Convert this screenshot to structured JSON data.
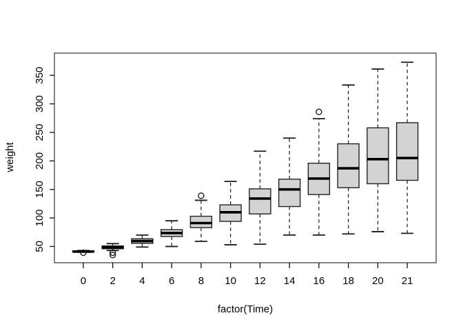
{
  "figure": {
    "background": "#ffffff",
    "frame_color": "#333333",
    "tick_color": "#111111",
    "box_fill": "#d3d3d3",
    "box_stroke": "#222222",
    "median_color": "#000000",
    "whisker_color": "#1a1a1a",
    "outlier_stroke": "#111111"
  },
  "chart_data": {
    "type": "boxplot",
    "title": "",
    "xlabel": "factor(Time)",
    "ylabel": "weight",
    "categories": [
      "0",
      "2",
      "4",
      "6",
      "8",
      "10",
      "12",
      "14",
      "16",
      "18",
      "20",
      "21"
    ],
    "y_ticks": [
      50,
      100,
      150,
      200,
      250,
      300,
      350
    ],
    "ylim": [
      21.5,
      389
    ],
    "grid": false,
    "legend": null,
    "boxes": [
      {
        "time": "0",
        "lower_whisker": 40,
        "q1": 41,
        "median": 41,
        "q3": 42.5,
        "upper_whisker": 43,
        "outliers": [
          39
        ]
      },
      {
        "time": "2",
        "lower_whisker": 43,
        "q1": 46,
        "median": 48.5,
        "q3": 51,
        "upper_whisker": 55,
        "outliers": [
          39,
          35
        ]
      },
      {
        "time": "4",
        "lower_whisker": 49,
        "q1": 55.5,
        "median": 59.5,
        "q3": 63.5,
        "upper_whisker": 70,
        "outliers": []
      },
      {
        "time": "6",
        "lower_whisker": 50,
        "q1": 67.5,
        "median": 73.5,
        "q3": 79.5,
        "upper_whisker": 95,
        "outliers": []
      },
      {
        "time": "8",
        "lower_whisker": 59,
        "q1": 83,
        "median": 91,
        "q3": 103,
        "upper_whisker": 131,
        "outliers": [
          139
        ]
      },
      {
        "time": "10",
        "lower_whisker": 53,
        "q1": 94,
        "median": 110,
        "q3": 123,
        "upper_whisker": 164,
        "outliers": []
      },
      {
        "time": "12",
        "lower_whisker": 54,
        "q1": 107,
        "median": 134,
        "q3": 151,
        "upper_whisker": 217,
        "outliers": []
      },
      {
        "time": "14",
        "lower_whisker": 70,
        "q1": 120,
        "median": 150,
        "q3": 168,
        "upper_whisker": 240,
        "outliers": []
      },
      {
        "time": "16",
        "lower_whisker": 70,
        "q1": 141,
        "median": 169,
        "q3": 196,
        "upper_whisker": 274,
        "outliers": [
          286
        ]
      },
      {
        "time": "18",
        "lower_whisker": 72,
        "q1": 153,
        "median": 187,
        "q3": 230,
        "upper_whisker": 333,
        "outliers": []
      },
      {
        "time": "20",
        "lower_whisker": 76,
        "q1": 160,
        "median": 203,
        "q3": 258,
        "upper_whisker": 361,
        "outliers": []
      },
      {
        "time": "21",
        "lower_whisker": 73,
        "q1": 166,
        "median": 205,
        "q3": 267,
        "upper_whisker": 373,
        "outliers": []
      }
    ]
  }
}
